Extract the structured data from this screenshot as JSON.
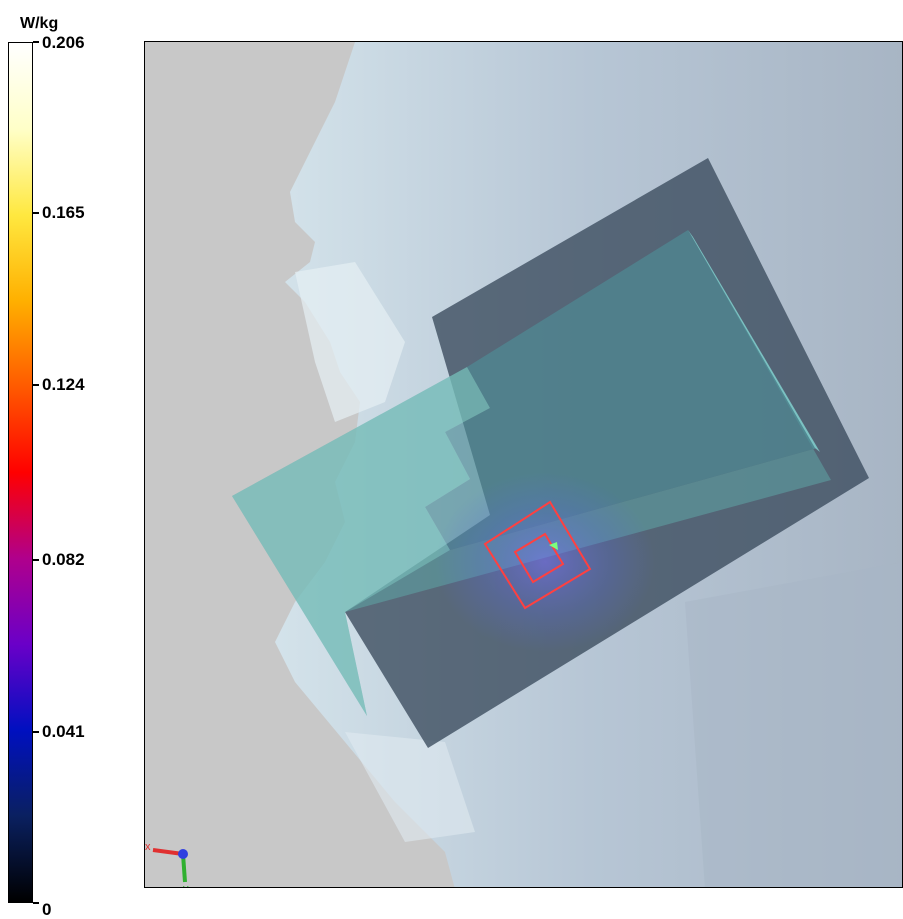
{
  "chart_data": {
    "type": "heatmap",
    "title": "",
    "unit": "W/kg",
    "colorbar": {
      "min": 0,
      "max": 0.206,
      "ticks": [
        {
          "label": "0.206",
          "value": 0.206
        },
        {
          "label": "0.165",
          "value": 0.165
        },
        {
          "label": "0.124",
          "value": 0.124
        },
        {
          "label": "0.082",
          "value": 0.082
        },
        {
          "label": "0.041",
          "value": 0.041
        },
        {
          "label": "0",
          "value": 0
        }
      ],
      "colors": [
        "#000000",
        "#0a2060",
        "#0010c0",
        "#6a00c8",
        "#b0008c",
        "#ff0000",
        "#ff5a00",
        "#ffb000",
        "#ffe840",
        "#ffffc8",
        "#ffffff"
      ]
    },
    "peak_value": 0.206,
    "axes_triad": {
      "x": "x",
      "y": "y"
    }
  }
}
